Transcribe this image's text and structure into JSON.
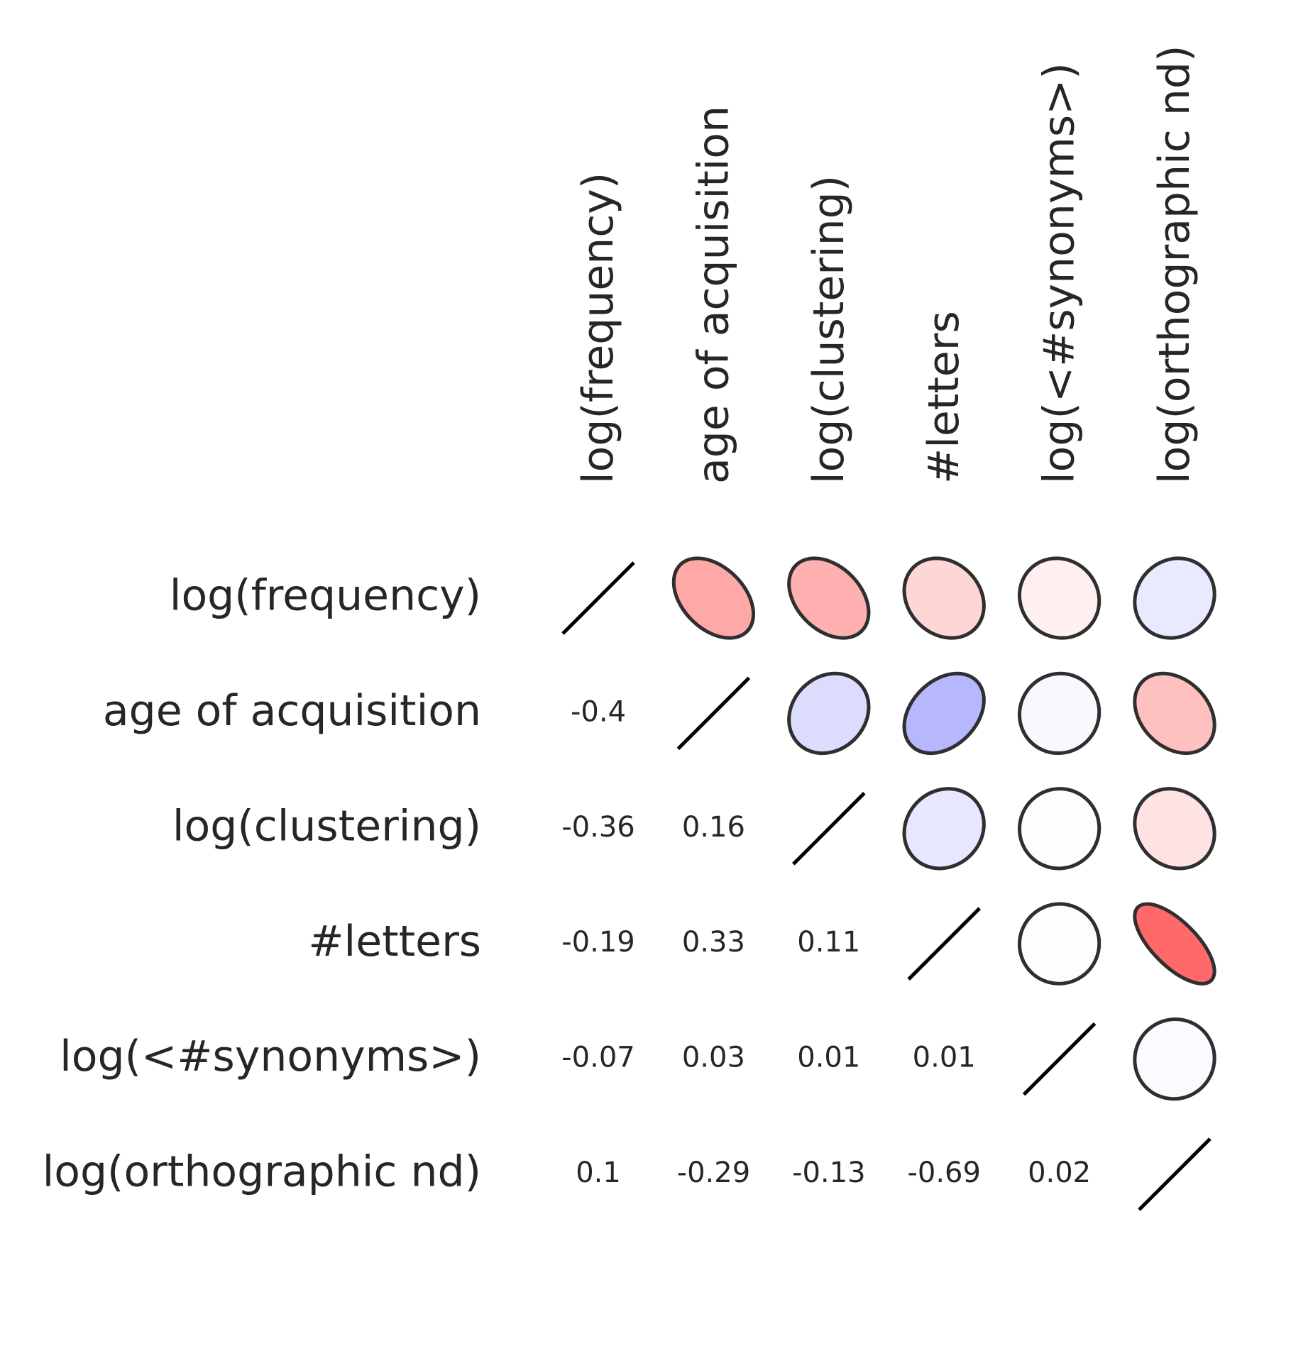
{
  "chart_data": {
    "type": "heatmap",
    "title": "",
    "variables": [
      "log(frequency)",
      "age of acquisition",
      "log(clustering)",
      "#letters",
      "log(<#synonyms>)",
      "log(orthographic nd)"
    ],
    "matrix": [
      [
        1.0,
        -0.4,
        -0.36,
        -0.19,
        -0.07,
        0.1
      ],
      [
        -0.4,
        1.0,
        0.16,
        0.33,
        0.03,
        -0.29
      ],
      [
        -0.36,
        0.16,
        1.0,
        0.11,
        0.01,
        -0.13
      ],
      [
        -0.19,
        0.33,
        0.11,
        1.0,
        0.01,
        -0.69
      ],
      [
        -0.07,
        0.03,
        0.01,
        0.01,
        1.0,
        0.02
      ],
      [
        0.1,
        -0.29,
        -0.13,
        -0.69,
        0.02,
        1.0
      ]
    ],
    "lower_triangle_labels": [
      [
        "",
        "",
        "",
        "",
        "",
        ""
      ],
      [
        "-0.4",
        "",
        "",
        "",
        "",
        ""
      ],
      [
        "-0.36",
        "0.16",
        "",
        "",
        "",
        ""
      ],
      [
        "-0.19",
        "0.33",
        "0.11",
        "",
        "",
        ""
      ],
      [
        "-0.07",
        "0.03",
        "0.01",
        "0.01",
        "",
        ""
      ],
      [
        "0.1",
        "-0.29",
        "-0.13",
        "-0.69",
        "0.02",
        ""
      ]
    ],
    "upper_triangle": "ellipses",
    "lower_triangle": "numbers",
    "diagonal": "line",
    "color_negative": "#ff0000",
    "color_positive": "#0000ff",
    "color_zero": "#ffffff",
    "grid": false,
    "legend": "none"
  }
}
